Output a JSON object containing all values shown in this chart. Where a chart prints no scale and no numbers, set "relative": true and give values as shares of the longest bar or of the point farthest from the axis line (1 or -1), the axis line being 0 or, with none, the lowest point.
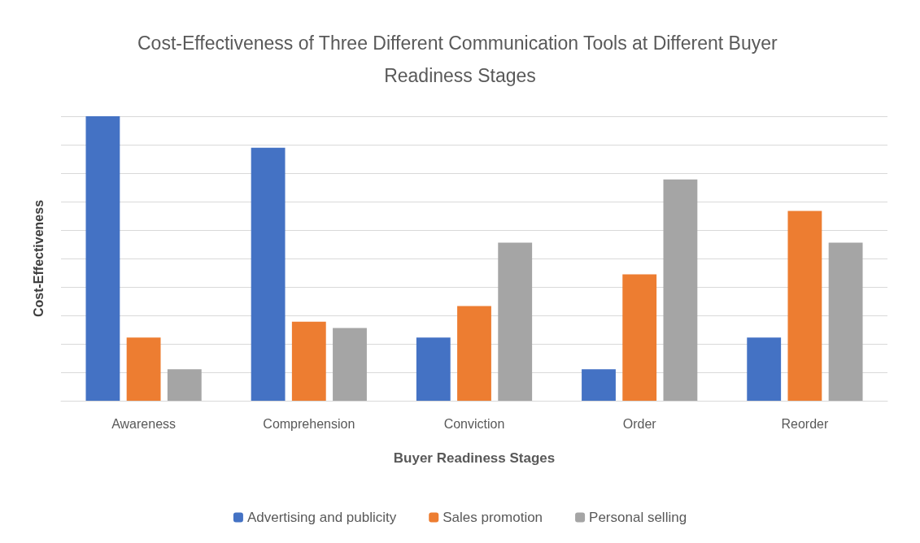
{
  "chart_data": {
    "type": "bar",
    "title": "Cost-Effectiveness of Three Different Communication Tools at Different Buyer Readiness Stages",
    "xlabel": "Buyer Readiness Stages",
    "ylabel": "Cost-Effectiveness",
    "categories": [
      "Awareness",
      "Comprehension",
      "Conviction",
      "Order",
      "Reorder"
    ],
    "relative": true,
    "grid": "y",
    "legend": "bottom",
    "series": [
      {
        "name": "Advertising and publicity",
        "color": "#4472c4",
        "values": [
          1,
          0.889,
          0.222,
          0.111,
          0.222
        ]
      },
      {
        "name": "Sales promotion",
        "color": "#ed7d31",
        "values": [
          0.222,
          0.278,
          0.333,
          0.444,
          0.667
        ]
      },
      {
        "name": "Personal selling",
        "color": "#a5a5a5",
        "values": [
          0.111,
          0.256,
          0.556,
          0.778,
          0.556
        ]
      }
    ]
  }
}
